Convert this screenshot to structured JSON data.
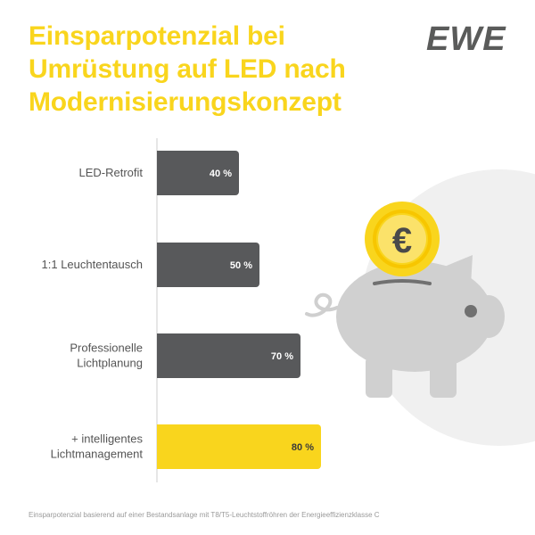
{
  "header": {
    "title_lines": [
      "Einsparpotenzial bei",
      "Umrüstung auf LED nach",
      "Modernisierungskonzept"
    ],
    "logo_text": "EWE"
  },
  "chart_data": {
    "type": "bar",
    "orientation": "horizontal",
    "title": "Einsparpotenzial bei Umrüstung auf LED nach Modernisierungskonzept",
    "categories": [
      [
        "LED-Retrofit"
      ],
      [
        "1:1 Leuchtentausch"
      ],
      [
        "Professionelle",
        "Lichtplanung"
      ],
      [
        "+ intelligentes",
        "Lichtmanagement"
      ]
    ],
    "values": [
      40,
      50,
      70,
      80
    ],
    "value_labels": [
      "40 %",
      "50 %",
      "70 %",
      "80 %"
    ],
    "unit": "%",
    "highlight_index": 3,
    "colors": {
      "bar": "#58595b",
      "highlight": "#f9d51d",
      "label_on_dark": "#ffffff",
      "label_on_light": "#3a3a3a",
      "axis": "#cccccc"
    },
    "xlim": [
      0,
      100
    ],
    "grid": false,
    "legend": "none"
  },
  "illustration": {
    "coin_symbol": "€",
    "colors": {
      "pig": "#d0d0d0",
      "pig_dark": "#bdbdbd",
      "eye": "#707070",
      "coin": "#f9d51d",
      "coin_ring": "#f7c600",
      "backdrop": "#f0f0f0"
    }
  },
  "footnote": "Einsparpotenzial basierend auf einer Bestandsanlage mit T8/T5-Leuchtstoffröhren der Energieeffizienzklasse C"
}
